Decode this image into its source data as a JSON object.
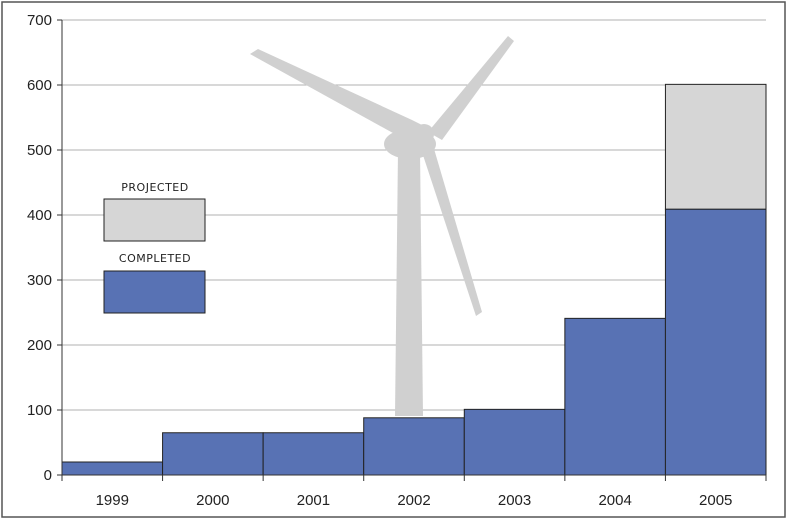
{
  "chart_data": {
    "type": "bar",
    "stacked": true,
    "categories": [
      "1999",
      "2000",
      "2001",
      "2002",
      "2003",
      "2004",
      "2005"
    ],
    "series": [
      {
        "name": "COMPLETED",
        "color": "#5872b4",
        "values": [
          20,
          65,
          65,
          88,
          101,
          241,
          409
        ]
      },
      {
        "name": "PROJECTED",
        "color": "#d6d6d6",
        "values": [
          0,
          0,
          0,
          0,
          0,
          0,
          192
        ]
      }
    ],
    "ylim": [
      0,
      700
    ],
    "yticks": [
      0,
      100,
      200,
      300,
      400,
      500,
      600,
      700
    ],
    "grid": true,
    "legend_position": "left",
    "background_graphic": "wind-turbine-silhouette",
    "colors": {
      "grid": "#999999",
      "frame": "#555555",
      "turbine": "#d0d0d0",
      "bar_stroke": "#222222"
    }
  }
}
